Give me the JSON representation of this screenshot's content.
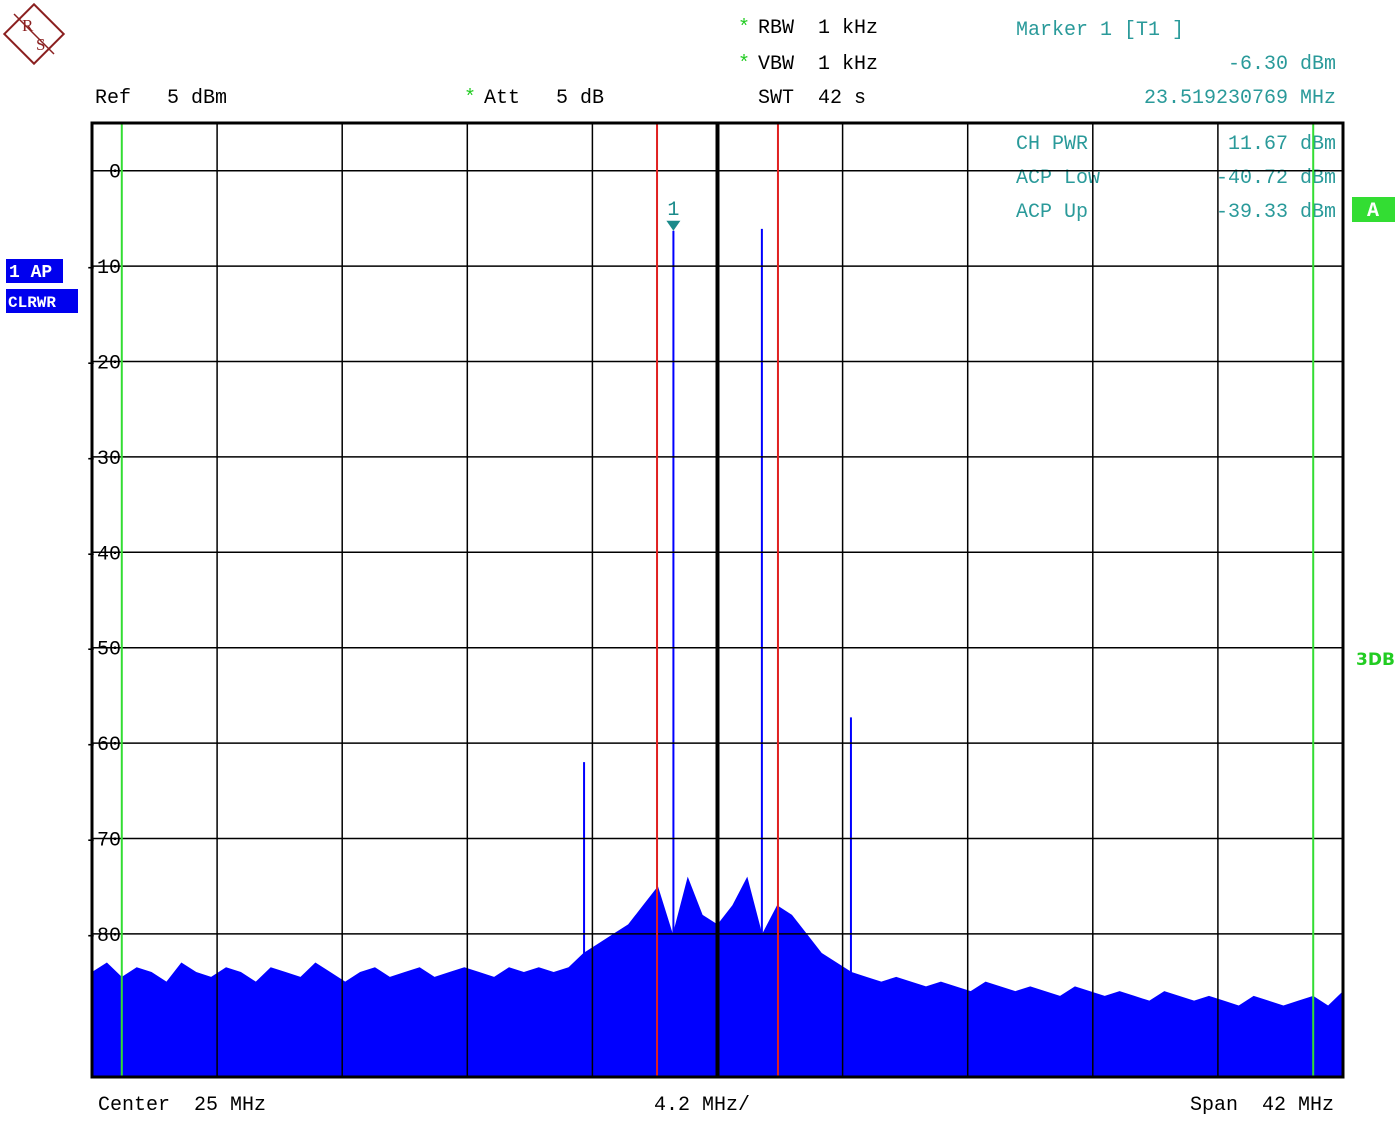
{
  "logo": [
    "R",
    "S"
  ],
  "header": {
    "modified_flag": "*",
    "rbw": "RBW  1 kHz",
    "vbw": "VBW  1 kHz",
    "swt": "SWT  42 s",
    "ref": "Ref   5 dBm",
    "att": "Att   5 dB",
    "marker_title": "Marker 1 [T1 ]",
    "marker_level": "-6.30 dBm",
    "marker_freq": "23.519230769 MHz",
    "results": [
      [
        "CH PWR",
        "11.67 dBm"
      ],
      [
        "ACP Low",
        "-40.72 dBm"
      ],
      [
        "ACP Up",
        "-39.33 dBm"
      ]
    ],
    "trace_mode": "A",
    "filter": "3DB",
    "trace_label": "1 AP",
    "trace_clear": "CLRWR"
  },
  "footer": {
    "center": "Center  25 MHz",
    "div": "4.2 MHz/",
    "span": "Span  42 MHz"
  },
  "chart_data": {
    "type": "spectrum",
    "xlim": [
      4,
      46
    ],
    "ylim": [
      -95,
      5
    ],
    "yticks": [
      0,
      -10,
      -20,
      -30,
      -40,
      -50,
      -60,
      -70,
      -80
    ],
    "xgrid": [
      8.2,
      12.4,
      16.6,
      20.8,
      25,
      29.2,
      33.4,
      37.6,
      41.8
    ],
    "grid": true,
    "color": "#0000ff",
    "center_line": 25,
    "center_color": "#000000",
    "channel_lines": [
      22.97,
      27.03
    ],
    "channel_color": "#e02020",
    "limit_lines": [
      5,
      45
    ],
    "limit_color": "#33dd33",
    "x": [
      4,
      4.5,
      5,
      5.5,
      6,
      6.5,
      7,
      7.5,
      8,
      8.5,
      9,
      9.5,
      10,
      10.5,
      11,
      11.5,
      12,
      12.5,
      13,
      13.5,
      14,
      14.5,
      15,
      15.5,
      16,
      16.5,
      17,
      17.5,
      18,
      18.5,
      19,
      19.5,
      20,
      20.5,
      21,
      21.5,
      22,
      22.5,
      23,
      23.5,
      24,
      24.5,
      25,
      25.5,
      26,
      26.5,
      27,
      27.5,
      28,
      28.5,
      29,
      29.5,
      30,
      30.5,
      31,
      31.5,
      32,
      32.5,
      33,
      33.5,
      34,
      34.5,
      35,
      35.5,
      36,
      36.5,
      37,
      37.5,
      38,
      38.5,
      39,
      39.5,
      40,
      40.5,
      41,
      41.5,
      42,
      42.5,
      43,
      43.5,
      44,
      44.5,
      45,
      45.5,
      46
    ],
    "values": [
      -84,
      -83,
      -84.5,
      -83.5,
      -84,
      -85,
      -83,
      -84,
      -84.5,
      -83.5,
      -84,
      -85,
      -83.5,
      -84,
      -84.5,
      -83,
      -84,
      -85,
      -84,
      -83.5,
      -84.5,
      -84,
      -83.5,
      -84.5,
      -84,
      -83.5,
      -84,
      -84.5,
      -83.5,
      -84,
      -83.5,
      -84,
      -83.5,
      -82,
      -81,
      -80,
      -79,
      -77,
      -75,
      -80,
      -74,
      -78,
      -79,
      -77,
      -74,
      -80,
      -77,
      -78,
      -80,
      -82,
      -83,
      -84,
      -84.5,
      -85,
      -84.5,
      -85,
      -85.5,
      -85,
      -85.5,
      -86,
      -85,
      -85.5,
      -86,
      -85.5,
      -86,
      -86.5,
      -85.5,
      -86,
      -86.5,
      -86,
      -86.5,
      -87,
      -86,
      -86.5,
      -87,
      -86.5,
      -87,
      -87.5,
      -86.5,
      -87,
      -87.5,
      -87,
      -86.5,
      -87.5,
      -86
    ],
    "peaks": {
      "x": [
        20.52,
        23.52,
        26.49,
        29.48
      ],
      "values": [
        -62,
        -6.3,
        -6.1,
        -57.3
      ]
    },
    "marker": {
      "label": "1",
      "x": 23.519230769,
      "value": -6.3,
      "color": "#1a8a8a"
    }
  }
}
